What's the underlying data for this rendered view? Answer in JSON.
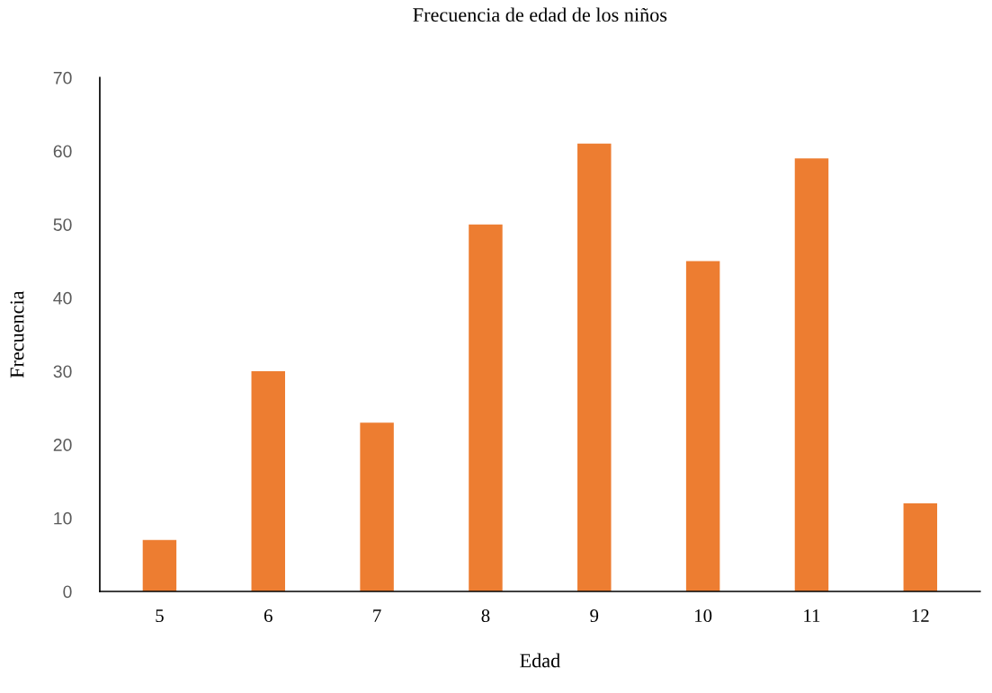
{
  "chart_data": {
    "type": "bar",
    "title": "Frecuencia de edad de los niños",
    "xlabel": "Edad",
    "ylabel": "Frecuencia",
    "categories": [
      "5",
      "6",
      "7",
      "8",
      "9",
      "10",
      "11",
      "12"
    ],
    "values": [
      7,
      30,
      23,
      50,
      61,
      45,
      59,
      12
    ],
    "color": "#ed7d31",
    "ylim": [
      0,
      70
    ],
    "yticks": [
      0,
      10,
      20,
      30,
      40,
      50,
      60,
      70
    ],
    "grid": false
  }
}
